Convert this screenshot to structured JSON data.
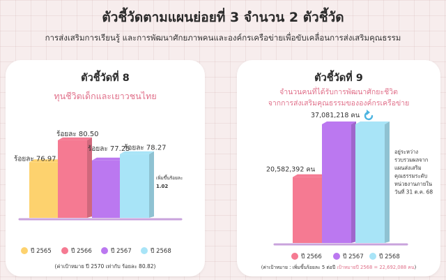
{
  "header": {
    "title": "ตัวชี้วัดตามแผนย่อยที่ 3 จำนวน 2 ตัวชี้วัด",
    "subtitle": "การส่งเสริมการเรียนรู้ และการพัฒนาศักยภาพคนและองค์กรเครือข่ายเพื่อขับเคลื่อนการส่งเสริมคุณธรรม"
  },
  "colors": {
    "yellow": "#fdd26e",
    "pink": "#f57a92",
    "purple": "#bb78f0",
    "cyan": "#a8e4f7",
    "axis": "#c9a3dc",
    "accent_text": "#e0708a"
  },
  "chart_data": [
    {
      "type": "bar",
      "title": "ตัวชี้วัดที่ 8",
      "subtitle": "ทุนชีวิตเด็กและเยาวชนไทย",
      "categories": [
        "ปี 2565",
        "ปี 2566",
        "ปี 2567",
        "ปี 2568"
      ],
      "values": [
        76.97,
        80.5,
        77.25,
        78.27
      ],
      "value_labels": [
        "ร้อยละ 76.97",
        "ร้อยละ 80.50",
        "ร้อยละ 77.25",
        "ร้อยละ 78.27"
      ],
      "series_colors": [
        "#fdd26e",
        "#f57a92",
        "#bb78f0",
        "#a8e4f7"
      ],
      "annotation": [
        "เพิ่มขึ้นร้อยละ",
        "1.02"
      ],
      "footnote": "(ค่าเป้าหมาย ปี 2570 เท่ากับ ร้อยละ 80.82)",
      "legend_position": "bottom"
    },
    {
      "type": "bar",
      "title": "ตัวชี้วัดที่ 9",
      "subtitle_lines": [
        "จำนวนคนที่ได้รับการพัฒนาศักยะชีวิต",
        "จากการส่งเสริมคุณธรรมขององค์กรเครือข่าย"
      ],
      "categories": [
        "ปี 2566",
        "ปี 2567",
        "ปี 2568"
      ],
      "values": [
        20582392,
        37081218,
        null
      ],
      "value_labels": [
        "20,582,392 คน",
        "37,081,218 คน",
        ""
      ],
      "series_colors": [
        "#f57a92",
        "#bb78f0",
        "#a8e4f7"
      ],
      "annotation": [
        "อยู่ระหว่าง",
        "รวบรวมผลจาก",
        "แผนส่งเสริม",
        "คุณธรรมระดับ",
        "หน่วยงานภายใน",
        "วันที่ 31 ต.ค. 68"
      ],
      "footnote_prefix": "(ค่าเป้าหมาย : เพิ่มขึ้นร้อยละ 5 ต่อปี",
      "footnote_highlight": "เป้าหมายปี 2568 = 22,692,088 คน",
      "footnote_suffix": ")",
      "legend_position": "bottom"
    }
  ]
}
